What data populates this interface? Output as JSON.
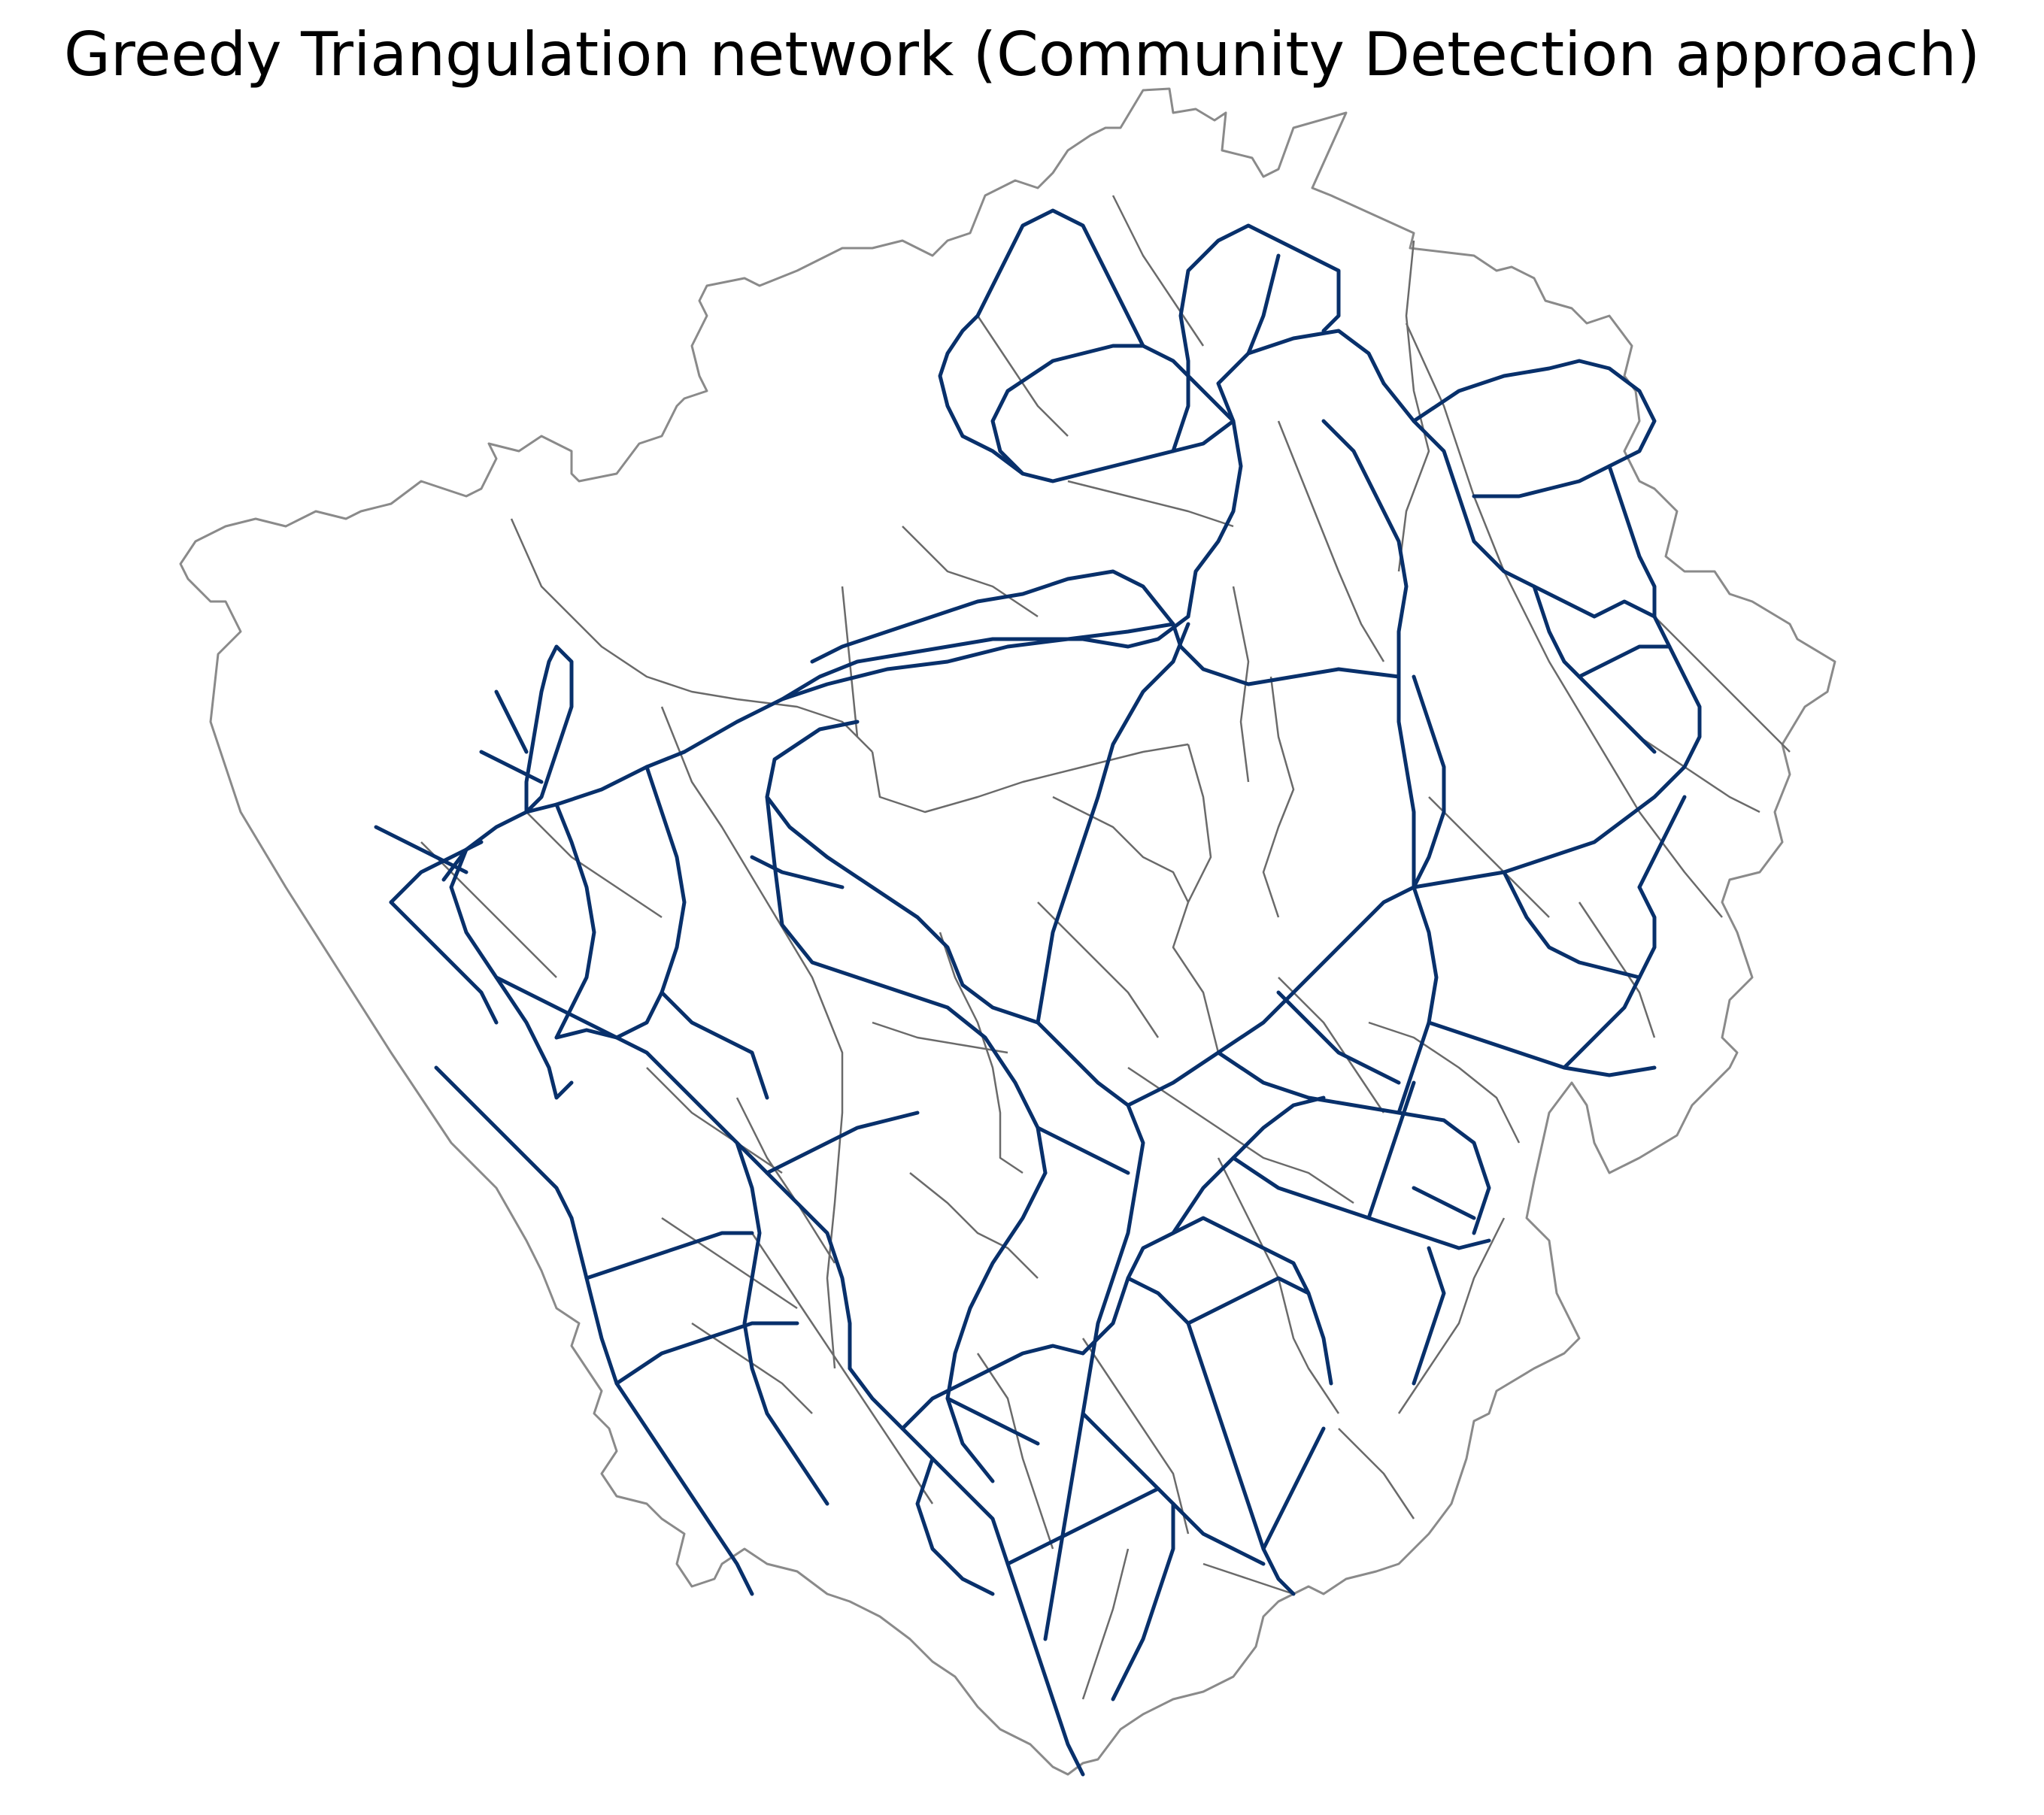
{
  "map": {
    "title": "Greedy Triangulation network (Community Detection approach)",
    "network_color": "#08306b",
    "boundary_color": "#6a6a6a",
    "outline_color": "#8a8a8a",
    "background": "#ffffff",
    "layers": [
      "region-outline",
      "ward-boundaries",
      "network-edges"
    ]
  }
}
